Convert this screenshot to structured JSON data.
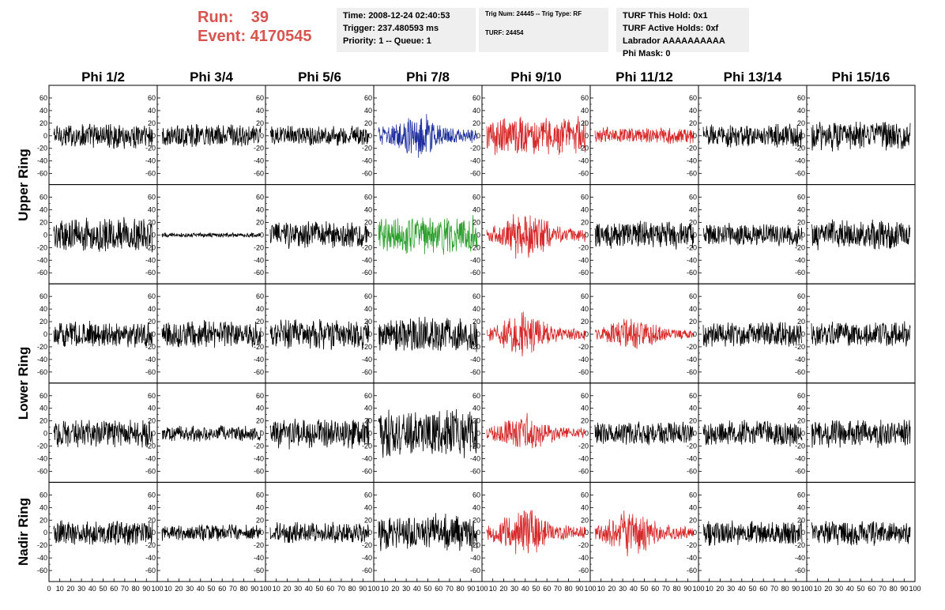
{
  "header": {
    "run_label": "Run:",
    "run_value": "39",
    "event_label": "Event:",
    "event_value": "4170545"
  },
  "info_boxes": [
    {
      "lines": [
        "Time: 2008-12-24 02:40:53",
        "Trigger: 237.480593 ms",
        "Priority: 1 -- Queue: 1"
      ],
      "small": false
    },
    {
      "lines": [
        "Trig Num: 24445 -- Trig Type: RF",
        "",
        "TURF: 24454"
      ],
      "small": true
    },
    {
      "lines": [
        "TURF This Hold: 0x1",
        "TURF Active Holds: 0xf",
        "Labrador AAAAAAAAAA",
        "Phi Mask: 0"
      ],
      "small": false
    }
  ],
  "chart_data": {
    "type": "line",
    "columns": [
      "Phi 1/2",
      "Phi 3/4",
      "Phi 5/6",
      "Phi 7/8",
      "Phi 9/10",
      "Phi 11/12",
      "Phi 13/14",
      "Phi 15/16"
    ],
    "rows": [
      "Upper Ring",
      "Upper Ring",
      "Lower Ring",
      "Lower Ring",
      "Nadir Ring"
    ],
    "row_labels": [
      {
        "text": "Upper Ring",
        "rows": [
          0,
          1
        ]
      },
      {
        "text": "Lower Ring",
        "rows": [
          2,
          3
        ]
      },
      {
        "text": "Nadir Ring",
        "rows": [
          4
        ]
      }
    ],
    "xlim": [
      0,
      100
    ],
    "ylim": [
      -70,
      70
    ],
    "y_ticks": [
      -60,
      -40,
      -20,
      0,
      20,
      40,
      60
    ],
    "x_ticks": [
      0,
      10,
      20,
      30,
      40,
      50,
      60,
      70,
      80,
      90,
      100
    ],
    "samples_per_trace": 260,
    "colors": {
      "black": "#000000",
      "blue": "#1f2f9e",
      "red": "#d62728",
      "green": "#2ca02c"
    },
    "traces": [
      [
        {
          "amp": 22,
          "color": "black"
        },
        {
          "amp": 20,
          "color": "black"
        },
        {
          "amp": 18,
          "color": "black"
        },
        {
          "amp": 35,
          "color": "blue",
          "burst": true
        },
        {
          "amp": 32,
          "color": "red"
        },
        {
          "amp": 14,
          "color": "red"
        },
        {
          "amp": 20,
          "color": "black"
        },
        {
          "amp": 26,
          "color": "black"
        }
      ],
      [
        {
          "amp": 30,
          "color": "black"
        },
        {
          "amp": 4,
          "color": "black"
        },
        {
          "amp": 24,
          "color": "black"
        },
        {
          "amp": 34,
          "color": "green"
        },
        {
          "amp": 36,
          "color": "red",
          "burst": true
        },
        {
          "amp": 24,
          "color": "black"
        },
        {
          "amp": 20,
          "color": "black"
        },
        {
          "amp": 26,
          "color": "black"
        }
      ],
      [
        {
          "amp": 22,
          "color": "black"
        },
        {
          "amp": 24,
          "color": "black"
        },
        {
          "amp": 26,
          "color": "black"
        },
        {
          "amp": 30,
          "color": "black"
        },
        {
          "amp": 32,
          "color": "red",
          "burst": true
        },
        {
          "amp": 26,
          "color": "red",
          "burst": true
        },
        {
          "amp": 22,
          "color": "black"
        },
        {
          "amp": 22,
          "color": "black"
        }
      ],
      [
        {
          "amp": 24,
          "color": "black"
        },
        {
          "amp": 14,
          "color": "black"
        },
        {
          "amp": 26,
          "color": "black"
        },
        {
          "amp": 40,
          "color": "black"
        },
        {
          "amp": 28,
          "color": "red",
          "burst": true
        },
        {
          "amp": 20,
          "color": "black"
        },
        {
          "amp": 22,
          "color": "black"
        },
        {
          "amp": 24,
          "color": "black"
        }
      ],
      [
        {
          "amp": 22,
          "color": "black"
        },
        {
          "amp": 14,
          "color": "black"
        },
        {
          "amp": 18,
          "color": "black"
        },
        {
          "amp": 32,
          "color": "black"
        },
        {
          "amp": 34,
          "color": "red",
          "burst": true
        },
        {
          "amp": 34,
          "color": "red",
          "burst": true
        },
        {
          "amp": 22,
          "color": "black"
        },
        {
          "amp": 22,
          "color": "black"
        }
      ]
    ]
  }
}
